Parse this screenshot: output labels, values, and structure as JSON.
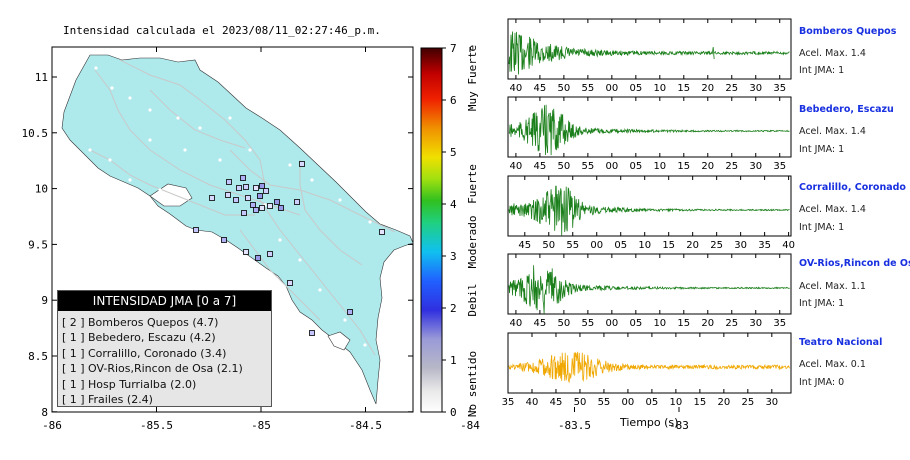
{
  "map": {
    "title": "Intensidad calculada el 2023/08/11_02:27:46_p.m.",
    "x_ticks": [
      "-86",
      "-85.5",
      "-85",
      "-84.5",
      "-84",
      "-83.5",
      "-83"
    ],
    "y_ticks": [
      "11",
      "10.5",
      "10",
      "9.5",
      "9",
      "8.5",
      "8"
    ],
    "land_color": "#aee9ec",
    "road_color": "#c9c9c9"
  },
  "colorbar": {
    "ticks": [
      "7",
      "6",
      "5",
      "4",
      "3",
      "2",
      "1",
      "0"
    ],
    "labels": [
      "Muy Fuerte",
      "Fuerte",
      "Moderado",
      "Debil",
      "No sentido"
    ]
  },
  "legend": {
    "header": "INTENSIDAD JMA [0 a 7]",
    "items": [
      {
        "badge": "[ 2 ]",
        "text": "Bomberos Quepos (4.7)"
      },
      {
        "badge": "[ 1 ]",
        "text": "Bebedero, Escazu (4.2)"
      },
      {
        "badge": "[ 1 ]",
        "text": "Corralillo, Coronado (3.4)"
      },
      {
        "badge": "[ 1 ]",
        "text": "OV-Rios,Rincon de Osa (2.1)"
      },
      {
        "badge": "[ 1 ]",
        "text": "Hosp Turrialba (2.0)"
      },
      {
        "badge": "[ 1 ]",
        "text": "Frailes (2.4)"
      }
    ]
  },
  "traces": [
    {
      "name": "Bomberos Quepos",
      "acel": "Acel. Max. 1.4",
      "jma": "Int JMA: 1",
      "color": "#1a7f1a",
      "ticks": [
        "40",
        "45",
        "50",
        "55",
        "00",
        "05",
        "10",
        "15",
        "20",
        "25",
        "30",
        "35"
      ],
      "start": 38.5
    },
    {
      "name": "Bebedero, Escazu",
      "acel": "Acel. Max. 1.4",
      "jma": "Int JMA: 1",
      "color": "#1a7f1a",
      "ticks": [
        "40",
        "45",
        "50",
        "55",
        "00",
        "05",
        "10",
        "15",
        "20",
        "25",
        "30",
        "35"
      ],
      "start": 38.5
    },
    {
      "name": "Corralillo, Coronado",
      "acel": "Acel. Max. 1.4",
      "jma": "Int JMA: 1",
      "color": "#1a7f1a",
      "ticks": [
        "45",
        "50",
        "55",
        "00",
        "05",
        "10",
        "15",
        "20",
        "25",
        "30",
        "35",
        "40"
      ],
      "start": 40.5
    },
    {
      "name": "OV-Rios,Rincon de Osa",
      "acel": "Acel. Max. 1.1",
      "jma": "Int JMA: 1",
      "color": "#1a7f1a",
      "ticks": [
        "40",
        "45",
        "50",
        "55",
        "00",
        "05",
        "10",
        "15",
        "20",
        "25",
        "30",
        "35"
      ],
      "start": 39
    },
    {
      "name": "Teatro Nacional",
      "acel": "Acel. Max. 0.1",
      "jma": "Int JMA: 0",
      "color": "#f0a800",
      "ticks": [
        "35",
        "40",
        "45",
        "50",
        "55",
        "00",
        "05",
        "10",
        "15",
        "20",
        "25",
        "30"
      ],
      "start": 35
    }
  ],
  "x_axis_label": "Tiempo (s)"
}
